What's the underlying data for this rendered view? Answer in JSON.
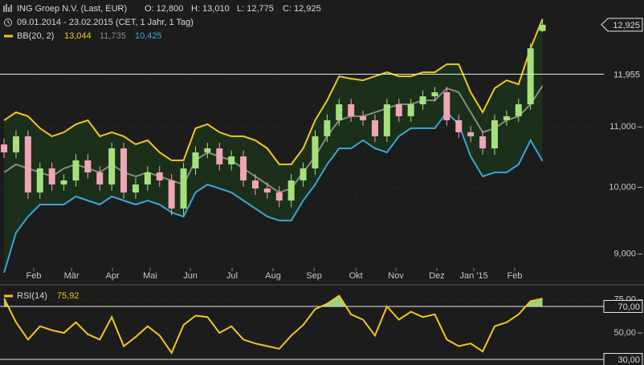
{
  "chart_data": [
    {
      "type": "candlestick",
      "title": "ING Groep N.V. (Last, EUR)",
      "quote": [
        "O: 12,800",
        "H: 13,010",
        "L: 12,775",
        "C: 12,925"
      ],
      "subtitle": "09.01.2014 - 23.02.2015 (CET, 1 Jahr, 1 Tag)",
      "x": [
        0,
        1,
        2,
        3,
        4,
        5,
        6,
        7,
        8,
        9,
        10,
        11,
        12,
        13,
        14,
        15,
        16,
        17,
        18,
        19,
        20,
        21,
        22,
        23,
        24,
        25,
        26,
        27,
        28,
        29,
        30,
        31,
        32,
        33,
        34,
        35,
        36,
        37,
        38,
        39,
        40,
        41,
        42,
        43,
        44,
        45
      ],
      "xlim": [
        -0.34,
        49.86
      ],
      "xticks": [
        {
          "value": 2.48,
          "label": "Feb"
        },
        {
          "value": 5.64,
          "label": "Mär"
        },
        {
          "value": 9.06,
          "label": "Apr"
        },
        {
          "value": 12.21,
          "label": "Mai"
        },
        {
          "value": 15.57,
          "label": "Jun"
        },
        {
          "value": 19.06,
          "label": "Jul"
        },
        {
          "value": 22.48,
          "label": "Aug"
        },
        {
          "value": 25.91,
          "label": "Sep"
        },
        {
          "value": 29.4,
          "label": "Okt"
        },
        {
          "value": 32.75,
          "label": "Nov"
        },
        {
          "value": 36.17,
          "label": "Dez"
        },
        {
          "value": 39.26,
          "label": "Jan '15"
        },
        {
          "value": 42.68,
          "label": "Feb"
        }
      ],
      "open": [
        10.7,
        10.567,
        10.839,
        9.919,
        10.303,
        10.045,
        10.109,
        10.435,
        10.238,
        10.045,
        10.634,
        9.919,
        10.045,
        10.238,
        10.109,
        9.671,
        10.303,
        10.567,
        10.634,
        10.369,
        10.5,
        10.109,
        9.982,
        9.919,
        9.794,
        10.109,
        10.303,
        10.839,
        11.117,
        11.4,
        11.187,
        11.117,
        10.839,
        11.4,
        11.187,
        11.4,
        11.545,
        11.619,
        11.117,
        10.908,
        10.839,
        10.634,
        11.117,
        11.187,
        11.4,
        12.8
      ],
      "high": [
        10.8,
        10.94,
        10.94,
        10.4,
        10.4,
        10.21,
        10.54,
        10.54,
        10.34,
        10.73,
        10.73,
        10.15,
        10.34,
        10.34,
        10.21,
        10.4,
        10.67,
        10.73,
        10.73,
        10.6,
        10.6,
        10.21,
        10.08,
        10.02,
        10.21,
        10.4,
        10.94,
        11.22,
        11.5,
        11.5,
        11.29,
        11.22,
        11.5,
        11.5,
        11.5,
        11.65,
        11.72,
        11.72,
        11.22,
        11.01,
        10.94,
        11.22,
        11.29,
        11.5,
        12.55,
        13.01
      ],
      "low": [
        10.47,
        10.47,
        9.82,
        9.82,
        9.95,
        9.95,
        10.01,
        10.14,
        9.95,
        9.95,
        9.82,
        9.82,
        9.95,
        10.01,
        9.57,
        9.57,
        10.2,
        10.47,
        10.27,
        10.27,
        10.01,
        9.88,
        9.82,
        9.69,
        9.69,
        10.01,
        10.2,
        10.74,
        11.02,
        11.09,
        11.02,
        10.74,
        10.74,
        11.09,
        11.09,
        11.3,
        11.45,
        11.02,
        10.81,
        10.74,
        10.53,
        10.53,
        11.02,
        11.09,
        11.3,
        12.775
      ],
      "close": [
        10.567,
        10.839,
        9.919,
        10.303,
        10.045,
        10.109,
        10.435,
        10.238,
        10.045,
        10.634,
        9.919,
        10.045,
        10.238,
        10.109,
        9.671,
        10.303,
        10.567,
        10.634,
        10.369,
        10.5,
        10.109,
        9.982,
        9.919,
        9.794,
        10.109,
        10.303,
        10.839,
        11.117,
        11.4,
        11.187,
        11.117,
        10.839,
        11.4,
        11.187,
        11.4,
        11.545,
        11.619,
        11.117,
        10.908,
        10.839,
        10.634,
        11.117,
        11.187,
        11.4,
        12.454,
        12.925
      ],
      "up_color": "#a6e07c",
      "down_color": "#f0a6b4",
      "indicator": {
        "name": "BB(20, 2)",
        "fill": "#1b2f1b",
        "series": [
          {
            "color": "#f2c81e",
            "last_label": "13,044",
            "values": [
              11.117,
              11.257,
              11.187,
              10.977,
              10.839,
              10.908,
              11.047,
              11.117,
              10.839,
              10.908,
              10.839,
              10.703,
              10.771,
              10.567,
              10.435,
              10.435,
              10.977,
              11.047,
              10.908,
              10.839,
              10.839,
              10.771,
              10.634,
              10.369,
              10.369,
              10.634,
              11.117,
              11.472,
              11.915,
              11.87,
              11.84,
              11.915,
              11.991,
              11.915,
              11.915,
              11.991,
              11.991,
              12.144,
              12.144,
              11.619,
              11.257,
              11.691,
              11.84,
              11.765,
              12.454,
              13.044
            ]
          },
          {
            "color": "#8a8a8a",
            "last_label": "11,735",
            "values": [
              10.238,
              10.369,
              10.303,
              10.238,
              10.174,
              10.303,
              10.369,
              10.303,
              10.238,
              10.369,
              10.238,
              10.174,
              10.238,
              10.174,
              10.109,
              10.045,
              10.435,
              10.567,
              10.5,
              10.435,
              10.303,
              10.174,
              10.045,
              9.919,
              9.982,
              10.238,
              10.5,
              10.839,
              11.117,
              11.187,
              11.187,
              11.257,
              11.328,
              11.4,
              11.4,
              11.472,
              11.472,
              11.691,
              11.619,
              11.257,
              10.908,
              10.977,
              11.117,
              11.187,
              11.4,
              11.735
            ]
          },
          {
            "color": "#3ba6d6",
            "last_label": "10,425",
            "values": [
              8.74,
              9.311,
              9.549,
              9.732,
              9.732,
              9.732,
              9.857,
              9.794,
              9.732,
              9.857,
              9.794,
              9.732,
              9.794,
              9.732,
              9.61,
              9.549,
              9.919,
              10.045,
              9.982,
              9.919,
              9.794,
              9.671,
              9.549,
              9.489,
              9.489,
              9.794,
              10.045,
              10.369,
              10.634,
              10.634,
              10.771,
              10.634,
              10.567,
              10.839,
              10.977,
              10.977,
              10.977,
              11.257,
              11.047,
              10.5,
              10.174,
              10.238,
              10.238,
              10.369,
              10.771,
              10.425
            ]
          }
        ]
      },
      "ylim": [
        8.607,
        13.44
      ],
      "log_scale": true,
      "yticks": [
        {
          "value": 9,
          "label": "9,000"
        },
        {
          "value": 10,
          "label": "10,000"
        },
        {
          "value": 11,
          "label": "11,000"
        }
      ],
      "reference_line": {
        "value": 11.955,
        "label": "11,955"
      },
      "last_price": {
        "value": 12.925,
        "label": "12,925"
      },
      "grid": true
    },
    {
      "type": "line",
      "name": "RSI(14)",
      "last_label": "75,92",
      "color": "#f2c81e",
      "zone_color": "#9ad47e",
      "x": [
        0,
        1,
        2,
        3,
        4,
        5,
        6,
        7,
        8,
        9,
        10,
        11,
        12,
        13,
        14,
        15,
        16,
        17,
        18,
        19,
        20,
        21,
        22,
        23,
        24,
        25,
        26,
        27,
        28,
        29,
        30,
        31,
        32,
        33,
        34,
        35,
        36,
        37,
        38,
        39,
        40,
        41,
        42,
        43,
        44,
        45
      ],
      "xlim": [
        -0.34,
        49.86
      ],
      "values": [
        76,
        58,
        45,
        55,
        52,
        50,
        58,
        49,
        45,
        62,
        40,
        47,
        55,
        48,
        35,
        56,
        63,
        62,
        50,
        55,
        45,
        42,
        40,
        38,
        48,
        56,
        68,
        72,
        78,
        64,
        60,
        48,
        70,
        60,
        66,
        62,
        64,
        45,
        40,
        42,
        36,
        55,
        58,
        64,
        74,
        75.92
      ],
      "ylim": [
        25.8,
        84.5
      ],
      "yticks": [
        {
          "value": 50,
          "label": "50,00"
        },
        {
          "value": 75,
          "label": "75,00"
        }
      ],
      "reference_lines": [
        {
          "value": 70,
          "label": "70,00"
        },
        {
          "value": 30,
          "label": "30,00"
        }
      ]
    }
  ]
}
